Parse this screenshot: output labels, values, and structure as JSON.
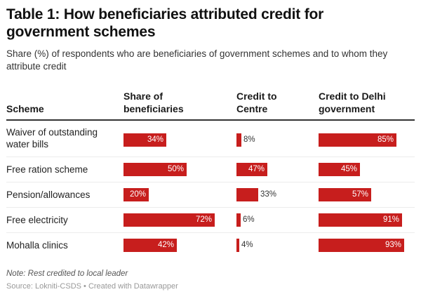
{
  "title": "Table 1: How beneficiaries attributed credit for government schemes",
  "subtitle": "Share (%) of respondents who are beneficiaries of government schemes and to whom they attribute credit",
  "note": "Note: Rest credited to local leader",
  "source": "Source: Lokniti-CSDS • Created with Datawrapper",
  "colors": {
    "bar": "#c71e1d",
    "rule": "#333333",
    "separator": "#ececec"
  },
  "chart_data": {
    "type": "table",
    "title": "Table 1: How beneficiaries attributed credit for government schemes",
    "subtitle": "Share (%) of respondents who are beneficiaries of government schemes and to whom they attribute credit",
    "columns": [
      "Scheme",
      "Share of beneficiaries",
      "Credit to Centre",
      "Credit to Delhi government"
    ],
    "unit": "%",
    "rows": [
      {
        "scheme": "Waiver of outstanding water bills",
        "values": [
          34,
          8,
          85
        ]
      },
      {
        "scheme": "Free ration scheme",
        "values": [
          50,
          47,
          45
        ]
      },
      {
        "scheme": "Pension/allowances",
        "values": [
          20,
          33,
          57
        ]
      },
      {
        "scheme": "Free electricity",
        "values": [
          72,
          6,
          91
        ]
      },
      {
        "scheme": "Mohalla clinics",
        "values": [
          42,
          4,
          93
        ]
      }
    ],
    "bar_columns": [
      1,
      2,
      3
    ],
    "ylim": [
      0,
      100
    ]
  }
}
